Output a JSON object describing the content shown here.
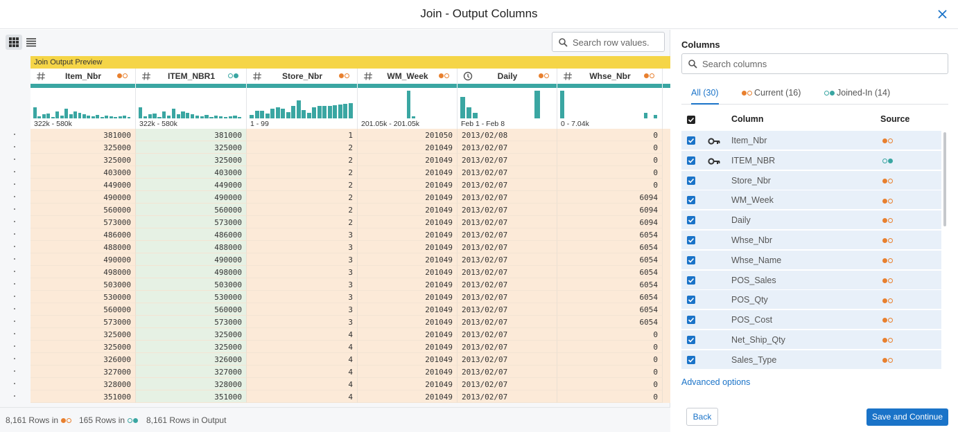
{
  "header": {
    "title": "Join - Output Columns"
  },
  "search_rows": {
    "placeholder": "Search row values."
  },
  "preview": {
    "label": "Join Output Preview",
    "columns": [
      {
        "name": "Item_Nbr",
        "kind": "numeric",
        "source": "current",
        "range": "322k - 580k",
        "histogram": [
          40,
          8,
          14,
          18,
          4,
          24,
          10,
          34,
          16,
          26,
          20,
          14,
          10,
          8,
          12,
          6,
          10,
          8,
          6,
          8,
          10,
          6
        ]
      },
      {
        "name": "ITEM_NBR1",
        "kind": "numeric",
        "source": "joined",
        "range": "322k - 580k",
        "histogram": [
          40,
          8,
          14,
          18,
          4,
          24,
          10,
          34,
          16,
          26,
          20,
          14,
          10,
          8,
          12,
          6,
          10,
          8,
          6,
          8,
          10,
          6
        ]
      },
      {
        "name": "Store_Nbr",
        "kind": "numeric",
        "source": "current",
        "range": "1 - 99",
        "histogram": [
          12,
          28,
          28,
          18,
          36,
          40,
          36,
          22,
          44,
          64,
          30,
          20,
          40,
          44,
          44,
          44,
          48,
          50,
          52,
          56
        ]
      },
      {
        "name": "WM_Week",
        "kind": "numeric",
        "source": "current",
        "range": "201.05k - 201.05k",
        "histogram": [
          0,
          0,
          0,
          0,
          0,
          0,
          0,
          0,
          0,
          0,
          100,
          8,
          0,
          0,
          0,
          0,
          0,
          0,
          0,
          0
        ]
      },
      {
        "name": "Daily",
        "kind": "date",
        "source": "current",
        "range": "Feb 1 - Feb 8",
        "histogram": [
          78,
          40,
          20,
          0,
          0,
          0,
          0,
          0,
          0,
          0,
          0,
          0,
          100,
          0,
          0
        ]
      },
      {
        "name": "Whse_Nbr",
        "kind": "numeric",
        "source": "current",
        "range": "0 - 7.04k",
        "histogram": [
          100,
          0,
          0,
          0,
          0,
          0,
          0,
          0,
          0,
          0,
          0,
          0,
          0,
          0,
          0,
          0,
          0,
          20,
          0,
          12
        ]
      }
    ],
    "rows": [
      [
        381000,
        381000,
        1,
        201050,
        "2013/02/08",
        0
      ],
      [
        325000,
        325000,
        2,
        201049,
        "2013/02/07",
        0
      ],
      [
        325000,
        325000,
        2,
        201049,
        "2013/02/07",
        0
      ],
      [
        403000,
        403000,
        2,
        201049,
        "2013/02/07",
        0
      ],
      [
        449000,
        449000,
        2,
        201049,
        "2013/02/07",
        0
      ],
      [
        490000,
        490000,
        2,
        201049,
        "2013/02/07",
        6094
      ],
      [
        560000,
        560000,
        2,
        201049,
        "2013/02/07",
        6094
      ],
      [
        573000,
        573000,
        2,
        201049,
        "2013/02/07",
        6094
      ],
      [
        486000,
        486000,
        3,
        201049,
        "2013/02/07",
        6054
      ],
      [
        488000,
        488000,
        3,
        201049,
        "2013/02/07",
        6054
      ],
      [
        490000,
        490000,
        3,
        201049,
        "2013/02/07",
        6054
      ],
      [
        498000,
        498000,
        3,
        201049,
        "2013/02/07",
        6054
      ],
      [
        503000,
        503000,
        3,
        201049,
        "2013/02/07",
        6054
      ],
      [
        530000,
        530000,
        3,
        201049,
        "2013/02/07",
        6054
      ],
      [
        560000,
        560000,
        3,
        201049,
        "2013/02/07",
        6054
      ],
      [
        573000,
        573000,
        3,
        201049,
        "2013/02/07",
        6054
      ],
      [
        325000,
        325000,
        4,
        201049,
        "2013/02/07",
        0
      ],
      [
        325000,
        325000,
        4,
        201049,
        "2013/02/07",
        0
      ],
      [
        326000,
        326000,
        4,
        201049,
        "2013/02/07",
        0
      ],
      [
        327000,
        327000,
        4,
        201049,
        "2013/02/07",
        0
      ],
      [
        328000,
        328000,
        4,
        201049,
        "2013/02/07",
        0
      ],
      [
        351000,
        351000,
        4,
        201049,
        "2013/02/07",
        0
      ]
    ]
  },
  "footer": {
    "current_rows": "8,161 Rows in",
    "joined_rows": "165 Rows in",
    "output_rows": "8,161 Rows in Output"
  },
  "columns_panel": {
    "title": "Columns",
    "search": "Search columns",
    "tabs": [
      {
        "label": "All (30)"
      },
      {
        "label": "Current (16)",
        "source": "current"
      },
      {
        "label": "Joined-In (14)",
        "source": "joined"
      }
    ],
    "column_header": "Column",
    "source_header": "Source",
    "items": [
      {
        "name": "Item_Nbr",
        "key": true,
        "source": "current"
      },
      {
        "name": "ITEM_NBR",
        "key": true,
        "source": "joined"
      },
      {
        "name": "Store_Nbr",
        "key": false,
        "source": "current"
      },
      {
        "name": "WM_Week",
        "key": false,
        "source": "current"
      },
      {
        "name": "Daily",
        "key": false,
        "source": "current"
      },
      {
        "name": "Whse_Nbr",
        "key": false,
        "source": "current"
      },
      {
        "name": "Whse_Name",
        "key": false,
        "source": "current"
      },
      {
        "name": "POS_Sales",
        "key": false,
        "source": "current"
      },
      {
        "name": "POS_Qty",
        "key": false,
        "source": "current"
      },
      {
        "name": "POS_Cost",
        "key": false,
        "source": "current"
      },
      {
        "name": "Net_Ship_Qty",
        "key": false,
        "source": "current"
      },
      {
        "name": "Sales_Type",
        "key": false,
        "source": "current"
      }
    ]
  },
  "advanced": "Advanced options",
  "buttons": {
    "back": "Back",
    "save": "Save and Continue"
  }
}
